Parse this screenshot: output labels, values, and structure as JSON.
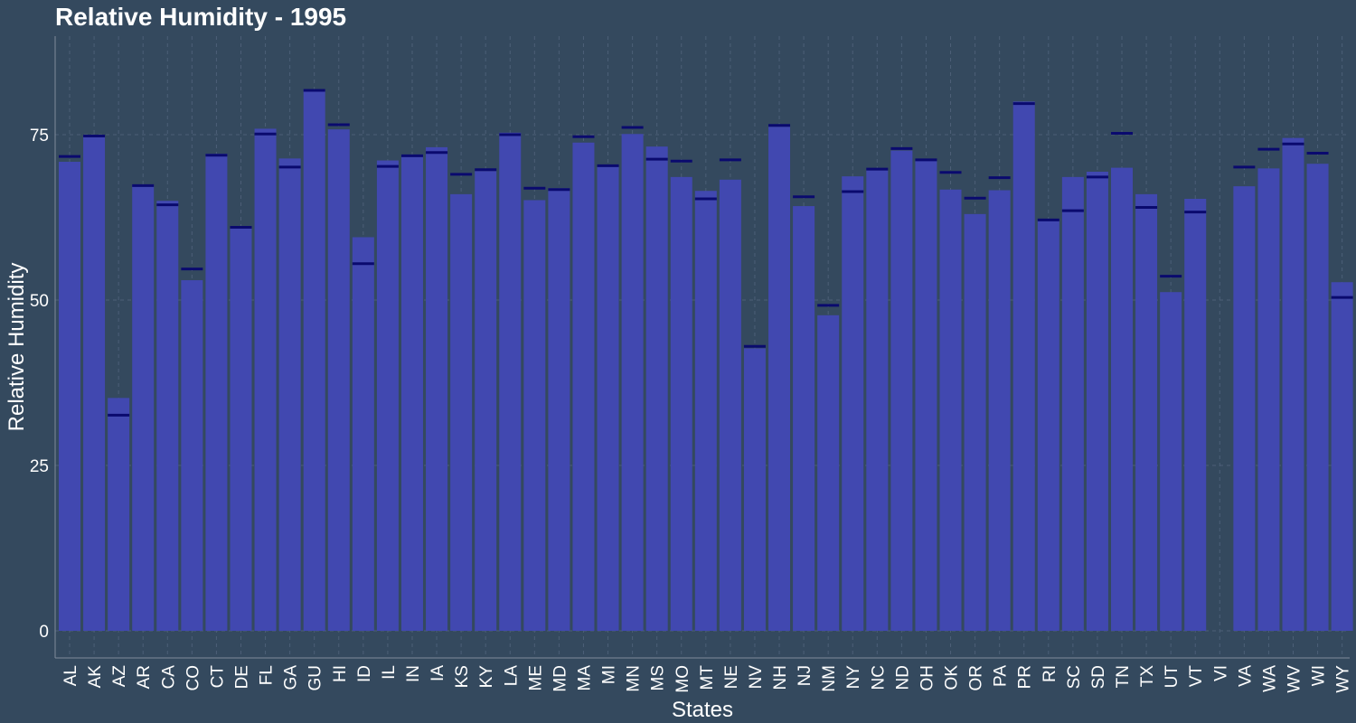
{
  "chart_data": {
    "type": "bar",
    "title": "Relative Humidity - 1995",
    "xlabel": "States",
    "ylabel": "Relative Humidity",
    "ylim": [
      0,
      90
    ],
    "yticks": [
      0,
      25,
      50,
      75
    ],
    "grid": true,
    "bar_color": "#4148b0",
    "marker_color": "#0a0a6e",
    "background": "#34495e",
    "categories": [
      "AL",
      "AK",
      "AZ",
      "AR",
      "CA",
      "CO",
      "CT",
      "DE",
      "FL",
      "GA",
      "GU",
      "HI",
      "ID",
      "IL",
      "IN",
      "IA",
      "KS",
      "KY",
      "LA",
      "ME",
      "MD",
      "MA",
      "MI",
      "MN",
      "MS",
      "MO",
      "MT",
      "NE",
      "NV",
      "NH",
      "NJ",
      "NM",
      "NY",
      "NC",
      "ND",
      "OH",
      "OK",
      "OR",
      "PA",
      "PR",
      "RI",
      "SC",
      "SD",
      "TN",
      "TX",
      "UT",
      "VT",
      "VI",
      "VA",
      "WA",
      "WV",
      "WI",
      "WY"
    ],
    "series": [
      {
        "values": [
          70.9,
          75.0,
          35.2,
          67.4,
          65.0,
          53.0,
          72.1,
          61.0,
          75.9,
          71.4,
          81.8,
          75.8,
          59.5,
          71.1,
          72.0,
          73.1,
          66.0,
          69.5,
          75.3,
          65.1,
          66.9,
          73.8,
          70.2,
          75.1,
          73.2,
          68.6,
          66.5,
          68.2,
          42.7,
          76.2,
          64.2,
          47.7,
          68.7,
          69.6,
          72.6,
          71.2,
          66.7,
          63.0,
          66.6,
          80.0,
          62.1,
          68.6,
          69.4,
          70.0,
          66.0,
          51.2,
          65.3,
          null,
          67.2,
          69.9,
          74.5,
          70.6,
          52.7
        ]
      },
      {
        "values": [
          71.7,
          74.8,
          32.6,
          67.3,
          64.4,
          54.7,
          71.9,
          61.0,
          75.1,
          70.1,
          81.7,
          76.5,
          55.5,
          70.2,
          71.8,
          72.3,
          69.0,
          69.7,
          75.0,
          66.9,
          66.7,
          74.7,
          70.3,
          76.1,
          71.3,
          71.0,
          65.3,
          71.2,
          43.0,
          76.4,
          65.6,
          49.2,
          66.4,
          69.8,
          72.9,
          71.2,
          69.3,
          65.4,
          68.5,
          79.7,
          62.1,
          63.5,
          68.6,
          75.2,
          64.0,
          53.6,
          63.3,
          null,
          70.1,
          72.8,
          73.6,
          72.2,
          50.4
        ]
      }
    ]
  }
}
